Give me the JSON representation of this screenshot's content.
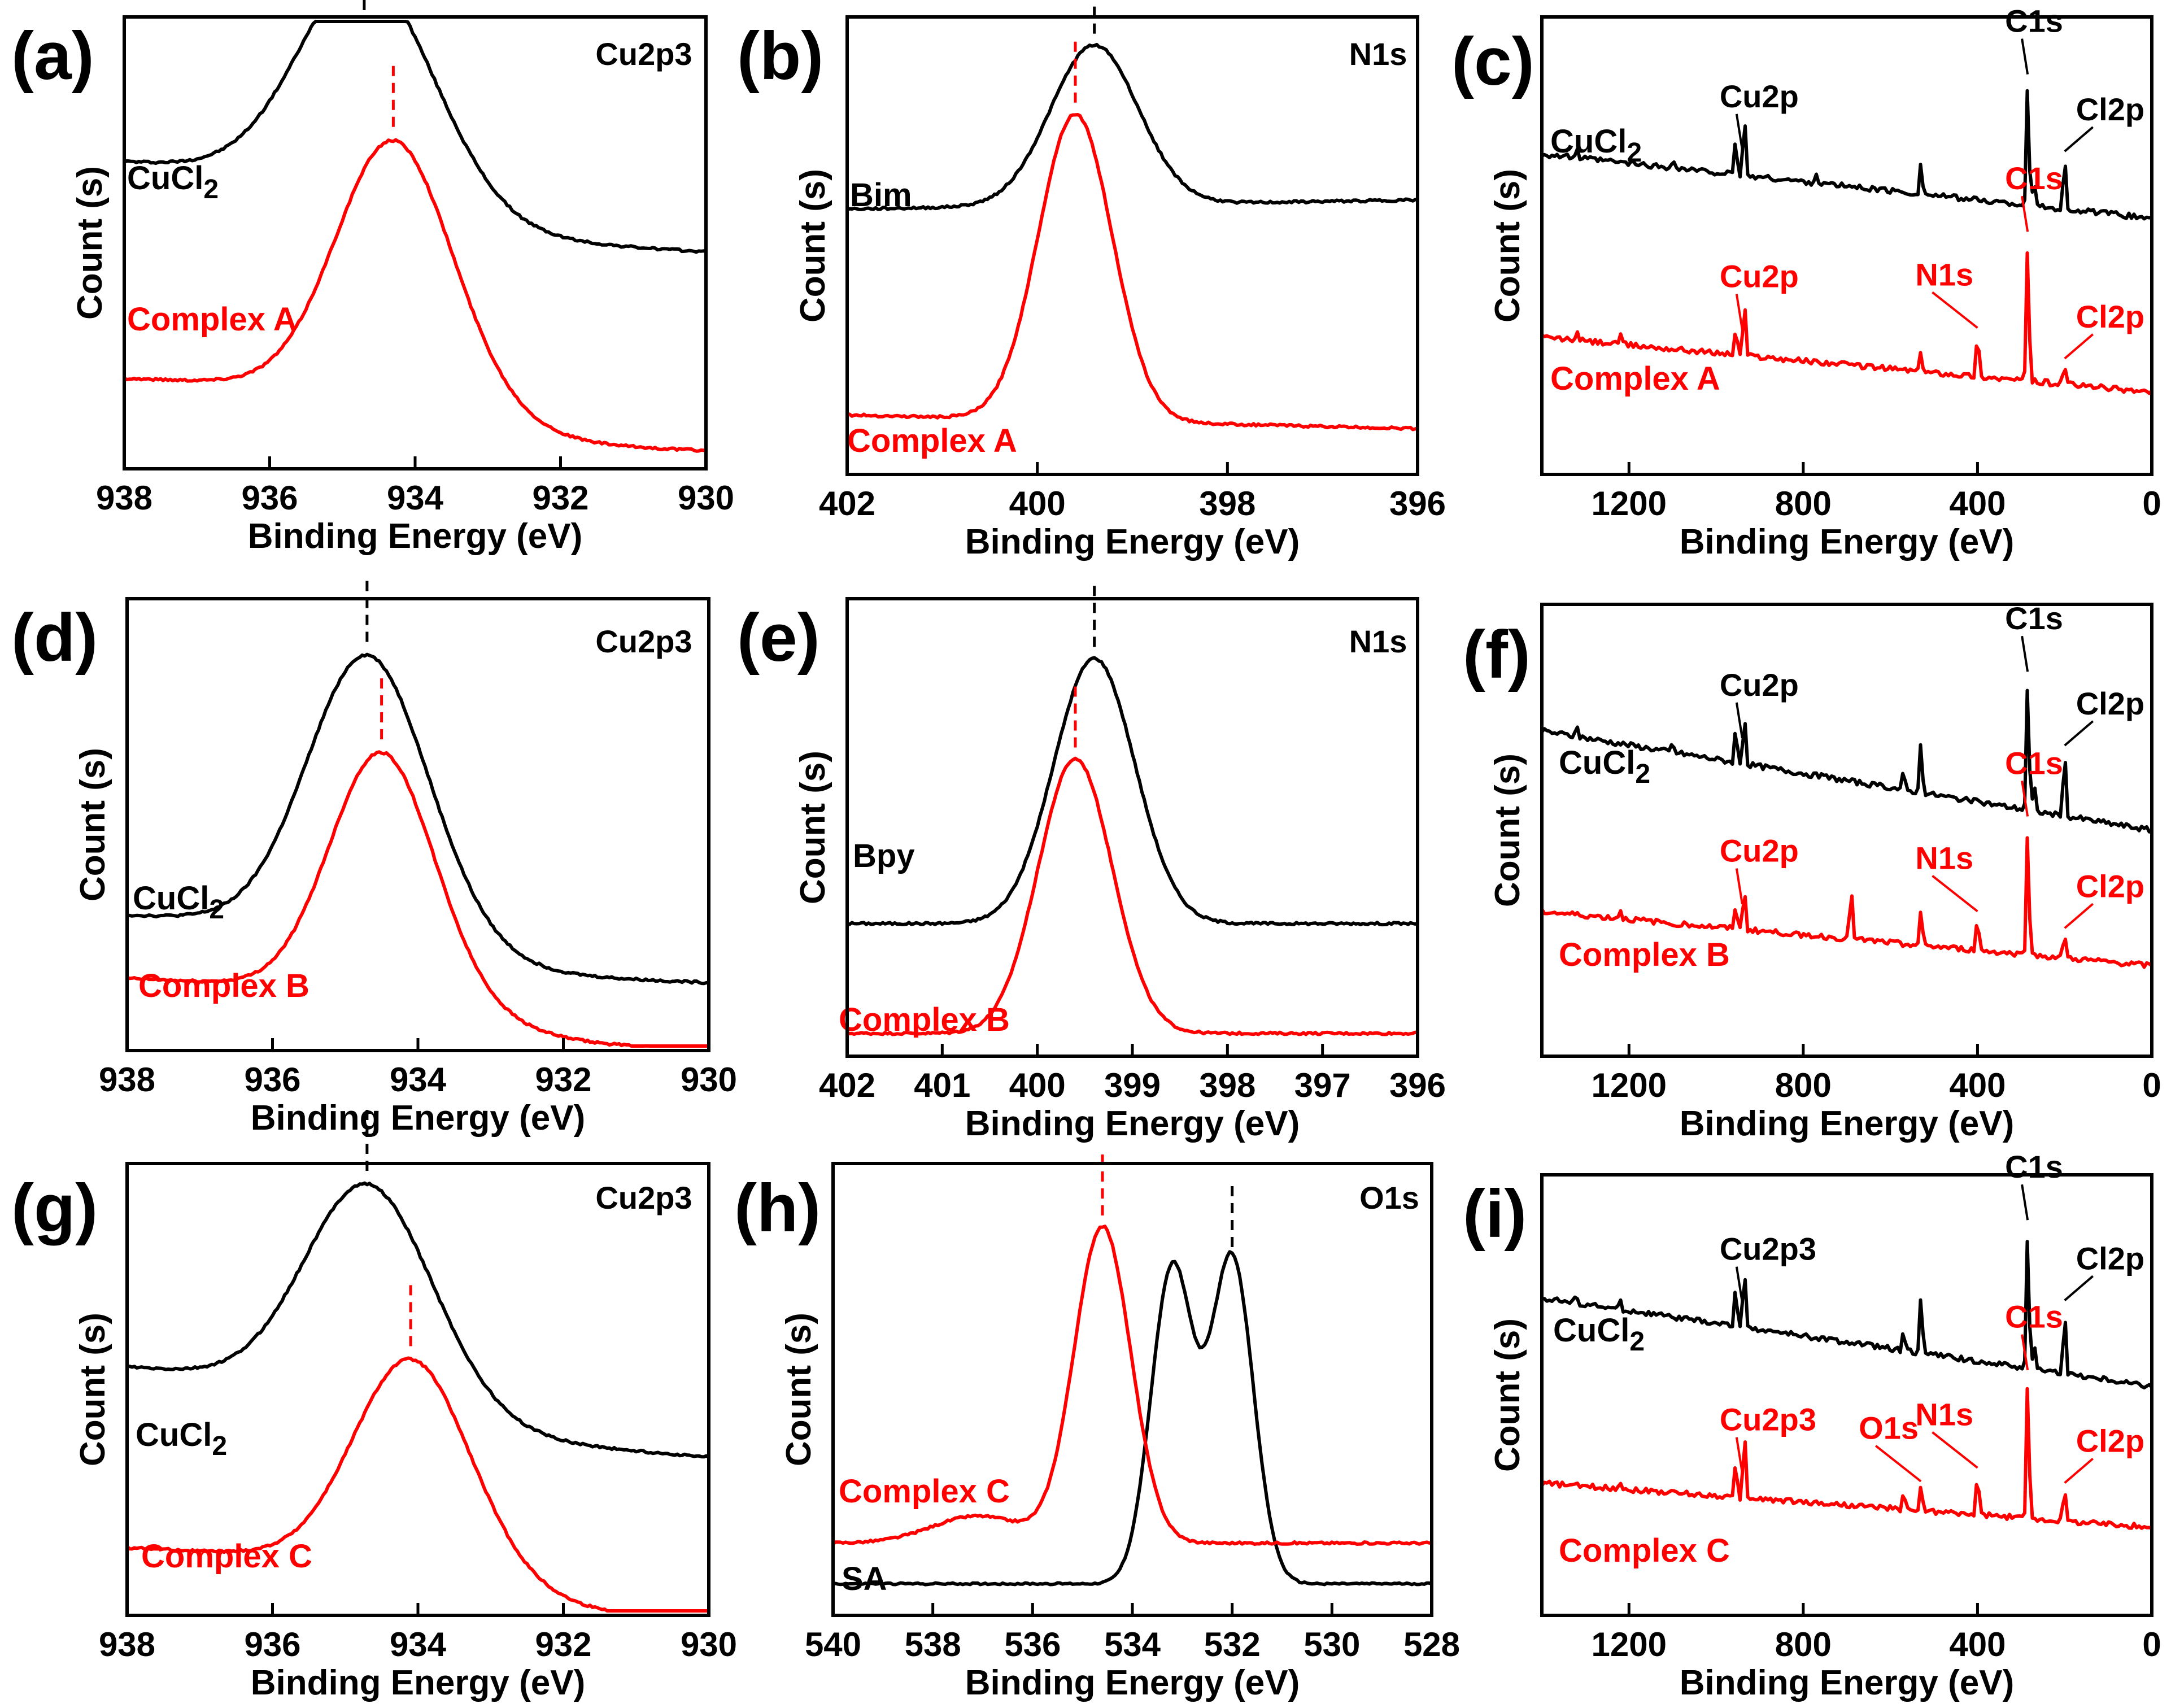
{
  "figure": {
    "colors": {
      "reference": "#000000",
      "complex": "#ff0000"
    },
    "xlabel": "Binding Energy (eV)",
    "ylabel": "Count (s)"
  },
  "chart_data": [
    {
      "id": "a",
      "letter": "(a)",
      "type": "line",
      "region": "Cu2p3",
      "xlabel": "Binding Energy (eV)",
      "ylabel": "Count (s)",
      "xlim": [
        938,
        930
      ],
      "xticks": [
        938,
        936,
        934,
        932,
        930
      ],
      "series": [
        {
          "name": "CuCl2",
          "label_text": "CuCl",
          "label_sub": "2",
          "color": "#000000",
          "peak": 934.7,
          "peak_marker": 934.7,
          "height": 0.45,
          "width": 1.25,
          "base": 0.68,
          "end": 0.61,
          "tail": 0.13
        },
        {
          "name": "Complex A",
          "label_text": "Complex A",
          "color": "#ff0000",
          "peak": 934.3,
          "peak_marker": 934.3,
          "height": 0.55,
          "width": 1.1,
          "base": 0.2,
          "end": 0.16,
          "tail": 0.12
        }
      ],
      "peak_labels": []
    },
    {
      "id": "b",
      "letter": "(b)",
      "type": "line",
      "region": "N1s",
      "xlabel": "Binding Energy (eV)",
      "ylabel": "Count (s)",
      "xlim": [
        402,
        396
      ],
      "xticks": [
        402,
        400,
        398,
        396
      ],
      "series": [
        {
          "name": "Bim",
          "label_text": "Bim",
          "color": "#000000",
          "peak": 399.4,
          "peak_marker": 399.4,
          "height": 0.35,
          "width": 0.65,
          "base": 0.58,
          "end": 0.6,
          "tail": 0
        },
        {
          "name": "Complex A",
          "label_text": "Complex A",
          "color": "#ff0000",
          "peak": 399.6,
          "peak_marker": 399.6,
          "height": 0.67,
          "width": 0.55,
          "base": 0.13,
          "end": 0.1,
          "tail": 0
        }
      ],
      "peak_labels": []
    },
    {
      "id": "c",
      "letter": "(c)",
      "type": "line",
      "region": "",
      "xlabel": "Binding Energy (eV)",
      "ylabel": "Count (s)",
      "xlim": [
        1400,
        0
      ],
      "xticks": [
        1200,
        800,
        400,
        0
      ],
      "series": [
        {
          "name": "CuCl2",
          "label_text": "CuCl",
          "label_sub": "2",
          "color": "#000000",
          "kind": "survey",
          "start": 0.7,
          "stop": 0.56,
          "spikes": [
            [
              935,
              0.14
            ],
            [
              955,
              0.08
            ],
            [
              530,
              0.07
            ],
            [
              285,
              0.28
            ],
            [
              270,
              0.06
            ],
            [
              200,
              0.12
            ],
            [
              1320,
              0.02
            ],
            [
              1100,
              0.02
            ],
            [
              770,
              0.02
            ]
          ]
        },
        {
          "name": "Complex A",
          "label_text": "Complex A",
          "color": "#ff0000",
          "kind": "survey",
          "start": 0.3,
          "stop": 0.18,
          "spikes": [
            [
              935,
              0.13
            ],
            [
              955,
              0.06
            ],
            [
              530,
              0.04
            ],
            [
              400,
              0.1
            ],
            [
              285,
              0.32
            ],
            [
              200,
              0.05
            ],
            [
              1320,
              0.02
            ],
            [
              1220,
              0.02
            ]
          ]
        }
      ],
      "peak_labels": [
        {
          "text": "Cu2p",
          "color": "#000000",
          "x": 940
        },
        {
          "text": "C1s",
          "color": "#000000",
          "x": 285
        },
        {
          "text": "Cl2p",
          "color": "#000000",
          "x": 200
        },
        {
          "text": "Cu2p",
          "color": "#ff0000",
          "x": 940
        },
        {
          "text": "N1s",
          "color": "#ff0000",
          "x": 400
        },
        {
          "text": "C1s",
          "color": "#ff0000",
          "x": 285
        },
        {
          "text": "Cl2p",
          "color": "#ff0000",
          "x": 200
        }
      ]
    },
    {
      "id": "d",
      "letter": "(d)",
      "type": "line",
      "region": "Cu2p3",
      "xlabel": "Binding Energy (eV)",
      "ylabel": "Count (s)",
      "xlim": [
        938,
        930
      ],
      "xticks": [
        938,
        936,
        934,
        932,
        930
      ],
      "series": [
        {
          "name": "CuCl2",
          "label_text": "CuCl",
          "label_sub": "2",
          "color": "#000000",
          "peak": 934.7,
          "peak_marker": 934.7,
          "height": 0.6,
          "width": 1.15,
          "base": 0.3,
          "end": 0.25,
          "tail": 0.1
        },
        {
          "name": "Complex B",
          "label_text": "Complex B",
          "color": "#ff0000",
          "peak": 934.5,
          "peak_marker": 934.5,
          "height": 0.53,
          "width": 1.0,
          "base": 0.16,
          "end": 0.1,
          "tail": 0.1
        }
      ],
      "peak_labels": []
    },
    {
      "id": "e",
      "letter": "(e)",
      "type": "line",
      "region": "N1s",
      "xlabel": "Binding Energy (eV)",
      "ylabel": "Count (s)",
      "xlim": [
        402,
        396
      ],
      "xticks": [
        402,
        401,
        400,
        399,
        398,
        397,
        396
      ],
      "series": [
        {
          "name": "Bpy",
          "label_text": "Bpy",
          "color": "#000000",
          "peak": 399.4,
          "peak_marker": 399.4,
          "height": 0.58,
          "width": 0.6,
          "base": 0.29,
          "end": 0.29,
          "tail": 0
        },
        {
          "name": "Complex B",
          "label_text": "Complex B",
          "color": "#ff0000",
          "peak": 399.6,
          "peak_marker": 399.6,
          "height": 0.6,
          "width": 0.55,
          "base": 0.05,
          "end": 0.05,
          "tail": 0
        }
      ],
      "peak_labels": []
    },
    {
      "id": "f",
      "letter": "(f)",
      "type": "line",
      "region": "",
      "xlabel": "Binding Energy (eV)",
      "ylabel": "Count (s)",
      "xlim": [
        1400,
        0
      ],
      "xticks": [
        1200,
        800,
        400,
        0
      ],
      "series": [
        {
          "name": "CuCl2",
          "label_text": "CuCl",
          "label_sub": "2",
          "color": "#000000",
          "kind": "survey",
          "start": 0.72,
          "stop": 0.5,
          "spikes": [
            [
              935,
              0.12
            ],
            [
              955,
              0.08
            ],
            [
              530,
              0.12
            ],
            [
              570,
              0.04
            ],
            [
              285,
              0.3
            ],
            [
              270,
              0.06
            ],
            [
              200,
              0.15
            ],
            [
              1320,
              0.02
            ],
            [
              1100,
              0.02
            ]
          ]
        },
        {
          "name": "Complex B",
          "label_text": "Complex B",
          "color": "#ff0000",
          "kind": "survey",
          "start": 0.32,
          "stop": 0.2,
          "spikes": [
            [
              935,
              0.1
            ],
            [
              955,
              0.06
            ],
            [
              690,
              0.13
            ],
            [
              530,
              0.08
            ],
            [
              400,
              0.08
            ],
            [
              285,
              0.3
            ],
            [
              200,
              0.06
            ],
            [
              1220,
              0.02
            ]
          ]
        }
      ],
      "peak_labels": [
        {
          "text": "Cu2p",
          "color": "#000000",
          "x": 940
        },
        {
          "text": "C1s",
          "color": "#000000",
          "x": 285
        },
        {
          "text": "Cl2p",
          "color": "#000000",
          "x": 200
        },
        {
          "text": "Cu2p",
          "color": "#ff0000",
          "x": 940
        },
        {
          "text": "N1s",
          "color": "#ff0000",
          "x": 400
        },
        {
          "text": "C1s",
          "color": "#ff0000",
          "x": 285
        },
        {
          "text": "Cl2p",
          "color": "#ff0000",
          "x": 200
        }
      ]
    },
    {
      "id": "g",
      "letter": "(g)",
      "type": "line",
      "region": "Cu2p3",
      "xlabel": "Binding Energy (eV)",
      "ylabel": "Count (s)",
      "xlim": [
        938,
        930
      ],
      "xticks": [
        938,
        936,
        934,
        932,
        930
      ],
      "series": [
        {
          "name": "CuCl2",
          "label_text": "CuCl",
          "label_sub": "2",
          "color": "#000000",
          "peak": 934.7,
          "peak_marker": 934.7,
          "height": 0.45,
          "width": 1.2,
          "base": 0.55,
          "end": 0.45,
          "tail": 0.1
        },
        {
          "name": "Complex C",
          "label_text": "Complex C",
          "color": "#ff0000",
          "peak": 934.1,
          "peak_marker": 934.1,
          "height": 0.45,
          "width": 1.1,
          "base": 0.15,
          "end": 0.09,
          "tail": 0.1
        }
      ],
      "peak_labels": []
    },
    {
      "id": "h",
      "letter": "(h)",
      "type": "line",
      "region": "O1s",
      "xlabel": "Binding Energy (eV)",
      "ylabel": "Count (s)",
      "xlim": [
        540,
        528
      ],
      "xticks": [
        540,
        538,
        536,
        534,
        532,
        530,
        528
      ],
      "series": [
        {
          "name": "SA",
          "label_text": "SA",
          "color": "#000000",
          "kind": "double",
          "peak": 532.0,
          "peak_marker": 532.0,
          "peak2": 533.2,
          "height": 0.72,
          "width": 0.6,
          "base": 0.07,
          "end": 0.07
        },
        {
          "name": "Complex C",
          "label_text": "Complex C",
          "color": "#ff0000",
          "peak": 534.6,
          "peak_marker": 534.6,
          "height": 0.7,
          "width": 0.8,
          "base": 0.16,
          "end": 0.16,
          "tail": 0,
          "left_shoulder": 0.06
        }
      ],
      "peak_labels": []
    },
    {
      "id": "i",
      "letter": "(i)",
      "type": "line",
      "region": "",
      "xlabel": "Binding Energy (eV)",
      "ylabel": "Count (s)",
      "xlim": [
        1400,
        0
      ],
      "xticks": [
        1200,
        800,
        400,
        0
      ],
      "series": [
        {
          "name": "CuCl2",
          "label_text": "CuCl",
          "label_sub": "2",
          "color": "#000000",
          "kind": "survey",
          "start": 0.72,
          "stop": 0.52,
          "spikes": [
            [
              935,
              0.15
            ],
            [
              955,
              0.1
            ],
            [
              530,
              0.14
            ],
            [
              570,
              0.05
            ],
            [
              285,
              0.33
            ],
            [
              270,
              0.06
            ],
            [
              200,
              0.16
            ],
            [
              1320,
              0.02
            ],
            [
              1220,
              0.02
            ]
          ]
        },
        {
          "name": "Complex C",
          "label_text": "Complex C",
          "color": "#ff0000",
          "kind": "survey",
          "start": 0.3,
          "stop": 0.2,
          "spikes": [
            [
              935,
              0.16
            ],
            [
              955,
              0.08
            ],
            [
              530,
              0.06
            ],
            [
              570,
              0.04
            ],
            [
              400,
              0.1
            ],
            [
              285,
              0.33
            ],
            [
              200,
              0.08
            ],
            [
              1220,
              0.02
            ]
          ]
        }
      ],
      "peak_labels": [
        {
          "text": "Cu2p3",
          "color": "#000000",
          "x": 940
        },
        {
          "text": "C1s",
          "color": "#000000",
          "x": 285
        },
        {
          "text": "Cl2p",
          "color": "#000000",
          "x": 200
        },
        {
          "text": "Cu2p3",
          "color": "#ff0000",
          "x": 940
        },
        {
          "text": "O1s",
          "color": "#ff0000",
          "x": 530
        },
        {
          "text": "N1s",
          "color": "#ff0000",
          "x": 400
        },
        {
          "text": "C1s",
          "color": "#ff0000",
          "x": 285
        },
        {
          "text": "Cl2p",
          "color": "#ff0000",
          "x": 200
        }
      ]
    }
  ]
}
